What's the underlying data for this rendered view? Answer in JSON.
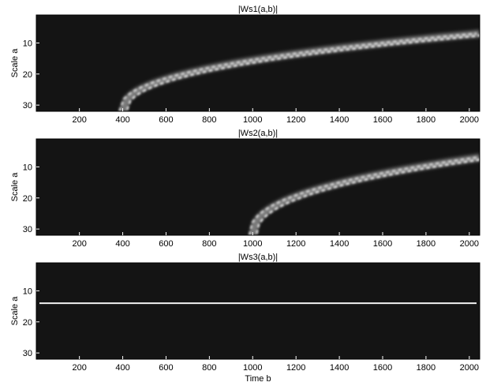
{
  "chart_data": [
    {
      "type": "heatmap",
      "title": "|Ws1(a,b)|",
      "xlabel": "",
      "ylabel": "Scale a",
      "xlim": [
        1,
        2048
      ],
      "ylim": [
        32,
        1
      ],
      "y_axis_inverted": true,
      "colormap": "gray",
      "x_ticks": [
        200,
        400,
        600,
        800,
        1000,
        1200,
        1400,
        1600,
        1800,
        2000
      ],
      "y_ticks": [
        10,
        20,
        30
      ],
      "ridge": {
        "description_type": "two-lobed chirp ridge",
        "start": {
          "b": 400,
          "a": 32
        },
        "end": {
          "b": 2048,
          "a": 7
        }
      }
    },
    {
      "type": "heatmap",
      "title": "|Ws2(a,b)|",
      "xlabel": "",
      "ylabel": "Scale a",
      "xlim": [
        1,
        2048
      ],
      "ylim": [
        32,
        1
      ],
      "y_axis_inverted": true,
      "colormap": "gray",
      "x_ticks": [
        200,
        400,
        600,
        800,
        1000,
        1200,
        1400,
        1600,
        1800,
        2000
      ],
      "y_ticks": [
        10,
        20,
        30
      ],
      "ridge": {
        "description_type": "two-lobed chirp ridge",
        "start": {
          "b": 1000,
          "a": 32
        },
        "end": {
          "b": 2048,
          "a": 7
        }
      }
    },
    {
      "type": "heatmap",
      "title": "|Ws3(a,b)|",
      "xlabel": "Time b",
      "ylabel": "Scale a",
      "xlim": [
        1,
        2048
      ],
      "ylim": [
        32,
        1
      ],
      "y_axis_inverted": true,
      "colormap": "gray",
      "x_ticks": [
        200,
        400,
        600,
        800,
        1000,
        1200,
        1400,
        1600,
        1800,
        2000
      ],
      "y_ticks": [
        10,
        20,
        30
      ],
      "ridge": {
        "description_type": "constant-scale band",
        "start": {
          "b": 1,
          "a": 14
        },
        "end": {
          "b": 2048,
          "a": 14
        }
      }
    }
  ]
}
